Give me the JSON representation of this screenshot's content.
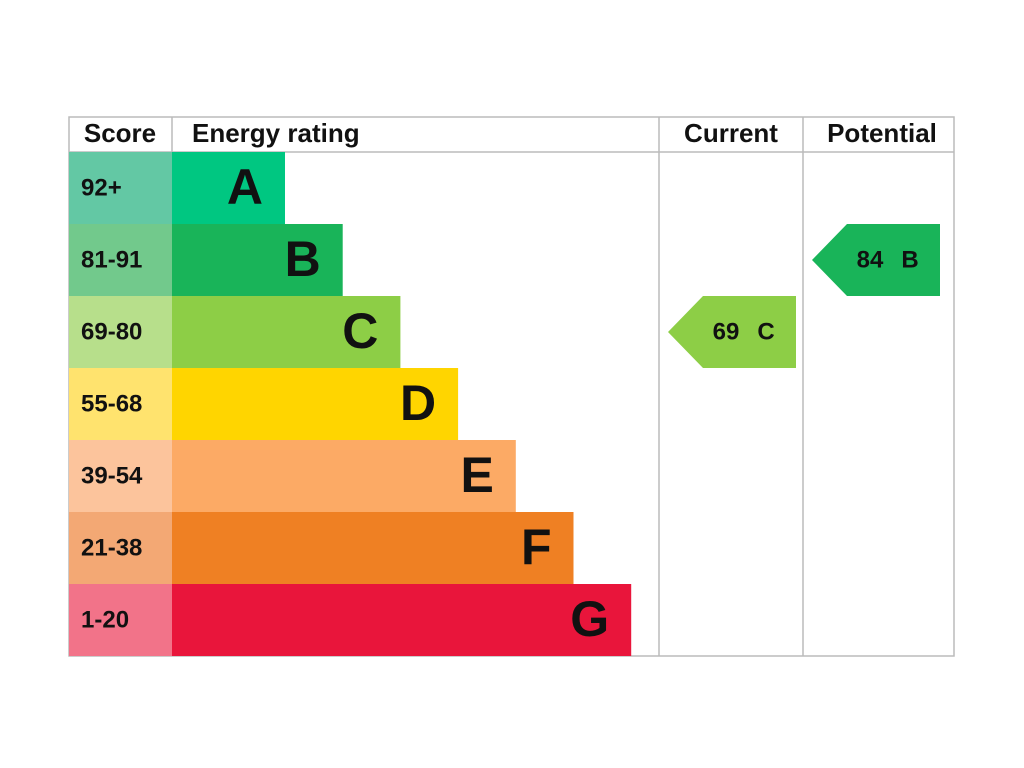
{
  "header": {
    "score": "Score",
    "energy_rating": "Energy rating",
    "current": "Current",
    "potential": "Potential"
  },
  "bands": [
    {
      "score": "92+",
      "letter": "A",
      "color": "#00c781",
      "score_color": "#63c8a4"
    },
    {
      "score": "81-91",
      "letter": "B",
      "color": "#19b459",
      "score_color": "#72c98c"
    },
    {
      "score": "69-80",
      "letter": "C",
      "color": "#8dce46",
      "score_color": "#b7df8b"
    },
    {
      "score": "55-68",
      "letter": "D",
      "color": "#ffd500",
      "score_color": "#ffe36e"
    },
    {
      "score": "39-54",
      "letter": "E",
      "color": "#fcaa65",
      "score_color": "#fcc49c"
    },
    {
      "score": "21-38",
      "letter": "F",
      "color": "#ef8023",
      "score_color": "#f3a874"
    },
    {
      "score": "1-20",
      "letter": "G",
      "color": "#e9153b",
      "score_color": "#f27389"
    }
  ],
  "current": {
    "value": 69,
    "letter": "C"
  },
  "potential": {
    "value": 84,
    "letter": "B"
  }
}
